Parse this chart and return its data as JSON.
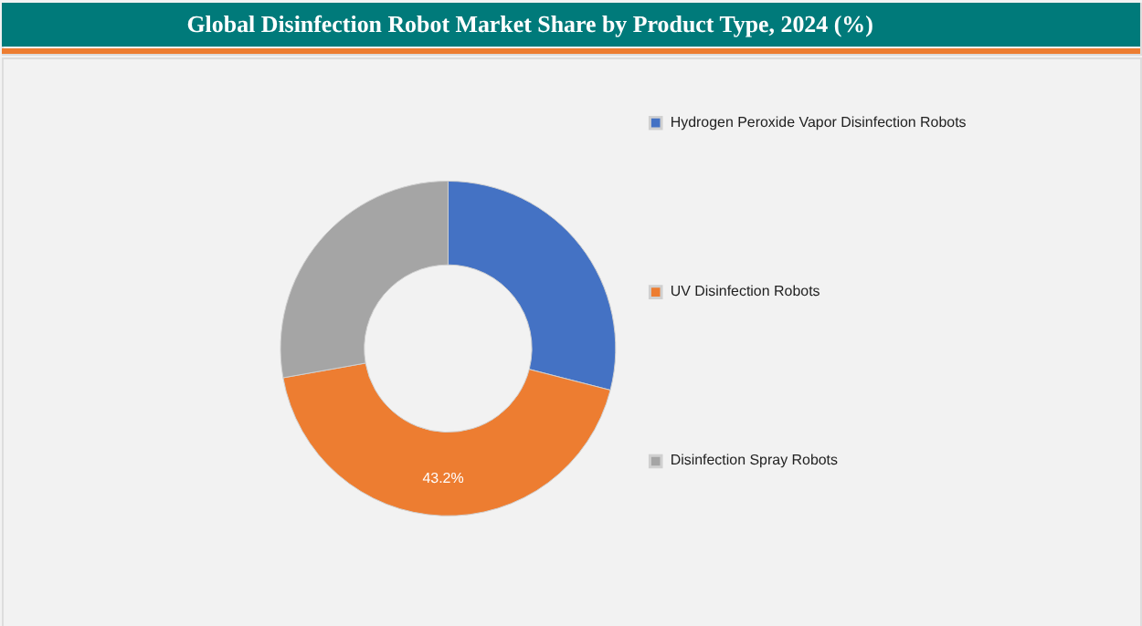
{
  "chart_data": {
    "type": "donut",
    "title": "Global Disinfection Robot Market Share by Product Type, 2024 (%)",
    "categories": [
      "Hydrogen Peroxide Vapor Disinfection Robots",
      "UV Disinfection Robots",
      "Disinfection Spray Robots"
    ],
    "values": [
      29.0,
      43.2,
      27.8
    ],
    "colors": [
      "#4472c4",
      "#ed7d31",
      "#a5a5a5"
    ],
    "value_labels": [
      null,
      "43.2%",
      null
    ],
    "legend": "right"
  }
}
